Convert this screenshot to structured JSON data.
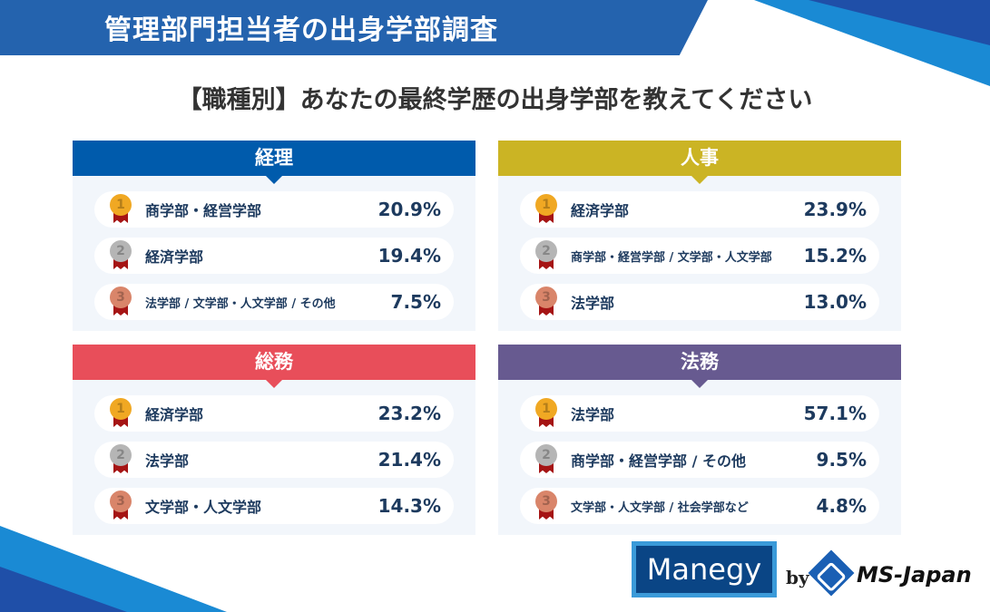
{
  "header": {
    "title": "管理部門担当者の出身学部調査"
  },
  "question": "【職種別】あなたの最終学歴の出身学部を教えてください",
  "panels": [
    {
      "title": "経理",
      "color": "#005bac",
      "rows": [
        {
          "rank": "1",
          "label": "商学部・経営学部",
          "pct": "20.9%"
        },
        {
          "rank": "2",
          "label": "経済学部",
          "pct": "19.4%"
        },
        {
          "rank": "3",
          "label": "法学部 / 文学部・人文学部 / その他",
          "pct": "7.5%"
        }
      ]
    },
    {
      "title": "人事",
      "color": "#cbb424",
      "rows": [
        {
          "rank": "1",
          "label": "経済学部",
          "pct": "23.9%"
        },
        {
          "rank": "2",
          "label": "商学部・経営学部 / 文学部・人文学部",
          "pct": "15.2%"
        },
        {
          "rank": "3",
          "label": "法学部",
          "pct": "13.0%"
        }
      ]
    },
    {
      "title": "総務",
      "color": "#e84e5a",
      "rows": [
        {
          "rank": "1",
          "label": "経済学部",
          "pct": "23.2%"
        },
        {
          "rank": "2",
          "label": "法学部",
          "pct": "21.4%"
        },
        {
          "rank": "3",
          "label": "文学部・人文学部",
          "pct": "14.3%"
        }
      ]
    },
    {
      "title": "法務",
      "color": "#675a90",
      "rows": [
        {
          "rank": "1",
          "label": "法学部",
          "pct": "57.1%"
        },
        {
          "rank": "2",
          "label": "商学部・経営学部 / その他",
          "pct": "9.5%"
        },
        {
          "rank": "3",
          "label": "文学部・人文学部 / 社会学部など",
          "pct": "4.8%"
        }
      ]
    }
  ],
  "medal_colors": {
    "1": "#f0a823",
    "2": "#b5b5b5",
    "3": "#d9856a"
  },
  "footer": {
    "logo": "Manegy",
    "by": "by",
    "company": "MS-Japan"
  }
}
